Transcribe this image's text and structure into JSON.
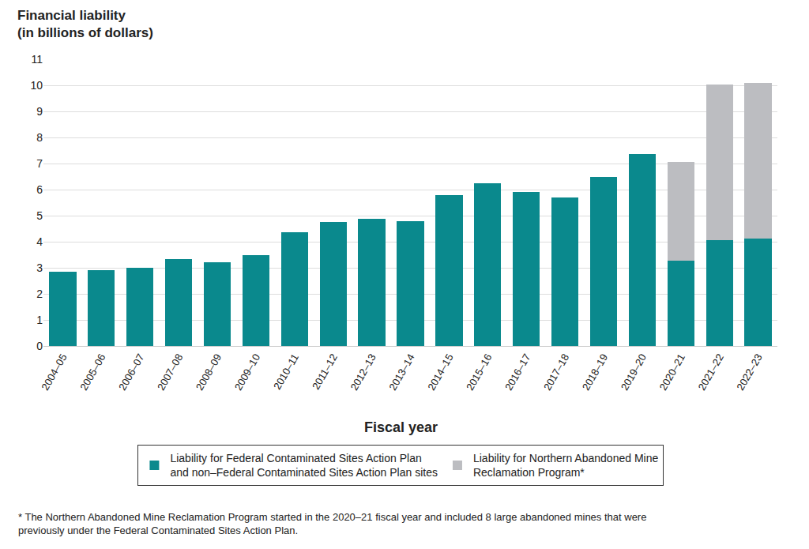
{
  "chart_data": {
    "type": "bar",
    "ylabel": "Financial liability\n(in billions of dollars)",
    "xlabel": "Fiscal year",
    "note": "* The Northern Abandoned Mine Reclamation Program started in the 2020–21 fiscal year and included 8 large abandoned mines that were\npreviously under the Federal Contaminated Sites Action Plan.",
    "categories": [
      "2004–05",
      "2005–06",
      "2006–07",
      "2007–08",
      "2008–09",
      "2009–10",
      "2010–11",
      "2011–12",
      "2012–13",
      "2013–14",
      "2014–15",
      "2015–16",
      "2016–17",
      "2017–18",
      "2018–19",
      "2019–20",
      "2020–21",
      "2021–22",
      "2022–23"
    ],
    "series": [
      {
        "name": "Liability for Federal Contaminated Sites Action Plan\nand non–Federal Contaminated Sites Action Plan sites",
        "color": "#0a898d",
        "values": [
          2.85,
          2.9,
          3.0,
          3.32,
          3.2,
          3.48,
          4.35,
          4.75,
          4.88,
          4.78,
          5.8,
          6.25,
          5.92,
          5.7,
          6.47,
          7.37,
          3.27,
          4.05,
          4.13
        ]
      },
      {
        "name": "Liability for Northern Abandoned Mine\nReclamation Program*",
        "color": "#bcbdc1",
        "values": [
          null,
          null,
          null,
          null,
          null,
          null,
          null,
          null,
          null,
          null,
          null,
          null,
          null,
          null,
          null,
          null,
          3.78,
          5.97,
          5.97
        ]
      }
    ],
    "ylim": [
      0,
      11
    ],
    "yticks": [
      0,
      1,
      2,
      3,
      4,
      5,
      6,
      7,
      8,
      9,
      10,
      11
    ],
    "grid": true,
    "stacked": true,
    "legend": "bottom"
  }
}
